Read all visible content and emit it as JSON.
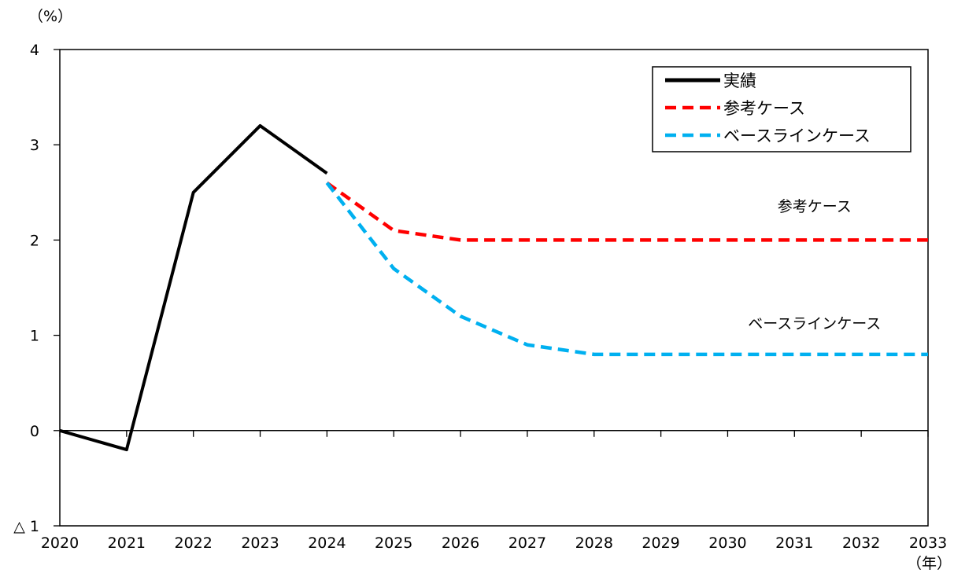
{
  "chart_data": {
    "type": "line",
    "title": "",
    "y_unit_label": "（%）",
    "x_unit_label": "（年）",
    "x_ticks": [
      "2020",
      "2021",
      "2022",
      "2023",
      "2024",
      "2025",
      "2026",
      "2027",
      "2028",
      "2029",
      "2030",
      "2031",
      "2032",
      "2033"
    ],
    "y_ticks": [
      {
        "value": 4,
        "label": "4"
      },
      {
        "value": 3,
        "label": "3"
      },
      {
        "value": 2,
        "label": "2"
      },
      {
        "value": 1,
        "label": "1"
      },
      {
        "value": 0,
        "label": "0"
      },
      {
        "value": -1,
        "label": "△ 1"
      }
    ],
    "xlim": [
      2020,
      2033
    ],
    "ylim": [
      -1,
      4
    ],
    "grid": false,
    "legend_position": "top-right",
    "series": [
      {
        "name": "実績",
        "color": "#000000",
        "dashed": false,
        "x": [
          2020,
          2021,
          2022,
          2023,
          2024
        ],
        "y": [
          0,
          -0.2,
          2.5,
          3.2,
          2.7
        ]
      },
      {
        "name": "参考ケース",
        "color": "#ff0000",
        "dashed": true,
        "x": [
          2024,
          2025,
          2026,
          2027,
          2028,
          2029,
          2030,
          2031,
          2032,
          2033
        ],
        "y": [
          2.6,
          2.1,
          2.0,
          2.0,
          2.0,
          2.0,
          2.0,
          2.0,
          2.0,
          2.0
        ]
      },
      {
        "name": "ベースラインケース",
        "color": "#00b0f0",
        "dashed": true,
        "x": [
          2024,
          2025,
          2026,
          2027,
          2028,
          2029,
          2030,
          2031,
          2032,
          2033
        ],
        "y": [
          2.6,
          1.7,
          1.2,
          0.9,
          0.8,
          0.8,
          0.8,
          0.8,
          0.8,
          0.8
        ]
      }
    ],
    "annotations": [
      {
        "text": "参考ケース",
        "x": 2031.3,
        "y": 2.3
      },
      {
        "text": "ベースラインケース",
        "x": 2031.3,
        "y": 1.07
      }
    ]
  }
}
